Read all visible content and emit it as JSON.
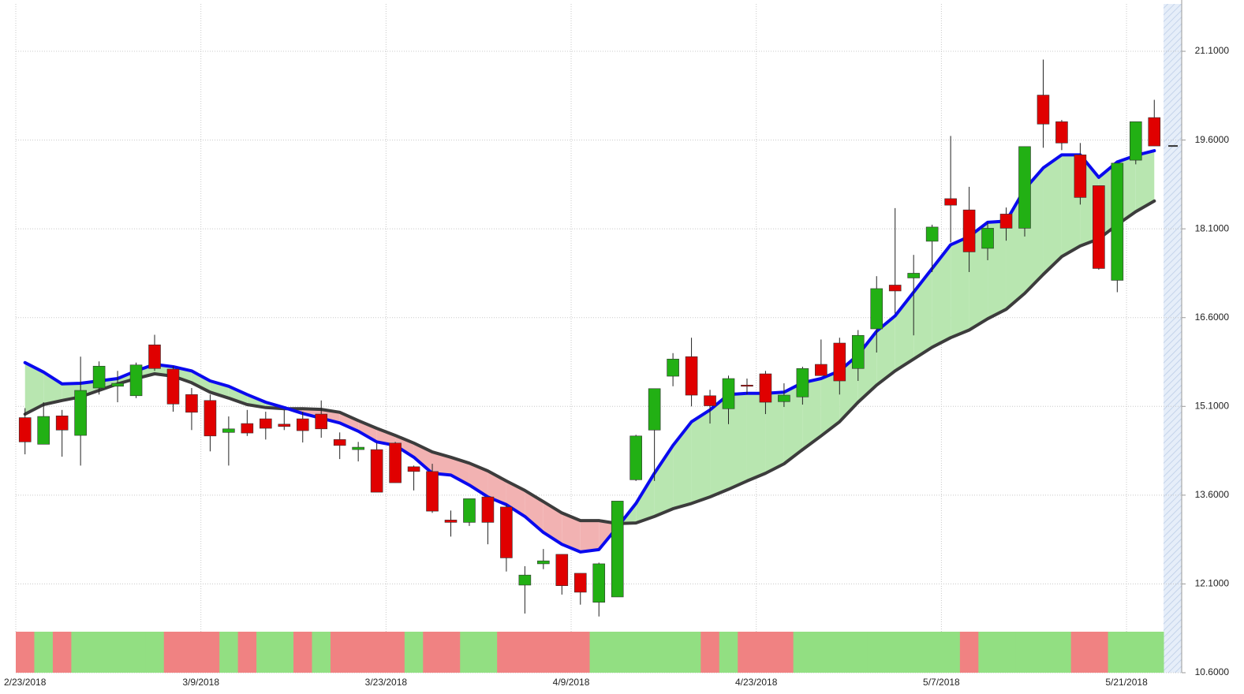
{
  "chart_data": {
    "type": "candlestick",
    "categories": [
      "2/23/2018",
      null,
      null,
      null,
      null,
      null,
      null,
      null,
      null,
      null,
      "3/9/2018",
      null,
      null,
      null,
      null,
      null,
      null,
      null,
      null,
      null,
      "3/23/2018",
      null,
      null,
      null,
      null,
      null,
      null,
      null,
      null,
      null,
      "4/9/2018",
      null,
      null,
      null,
      null,
      null,
      null,
      null,
      null,
      null,
      "4/23/2018",
      null,
      null,
      null,
      null,
      null,
      null,
      null,
      null,
      null,
      "5/7/2018",
      null,
      null,
      null,
      null,
      null,
      null,
      null,
      null,
      null,
      "5/21/2018",
      null
    ],
    "open": [
      14.91,
      14.46,
      14.94,
      14.61,
      15.41,
      15.44,
      15.28,
      16.14,
      15.73,
      15.3,
      15.2,
      14.66,
      14.81,
      14.89,
      14.8,
      14.89,
      14.97,
      14.54,
      14.37,
      14.37,
      14.48,
      14.08,
      14.0,
      13.18,
      13.14,
      13.57,
      13.4,
      12.08,
      12.44,
      12.6,
      12.28,
      11.79,
      11.88,
      13.86,
      14.7,
      15.61,
      15.94,
      15.28,
      15.06,
      15.46,
      15.65,
      15.18,
      15.26,
      15.81,
      16.17,
      15.74,
      16.41,
      17.15,
      17.27,
      17.89,
      18.61,
      18.42,
      17.77,
      18.35,
      18.11,
      20.36,
      19.91,
      19.35,
      18.83,
      17.23,
      19.26,
      19.98
    ],
    "high": [
      15.07,
      15.17,
      15.04,
      15.94,
      15.86,
      15.7,
      15.84,
      16.31,
      15.78,
      15.41,
      15.3,
      14.93,
      15.04,
      15.01,
      15.04,
      15.01,
      15.2,
      14.66,
      14.5,
      14.48,
      14.5,
      14.1,
      14.13,
      13.34,
      13.54,
      13.57,
      13.44,
      12.4,
      12.69,
      12.6,
      12.28,
      12.46,
      13.5,
      14.62,
      15.4,
      16.0,
      16.26,
      15.38,
      15.62,
      15.57,
      15.7,
      15.49,
      15.77,
      16.23,
      16.26,
      16.39,
      17.3,
      18.45,
      17.66,
      18.17,
      19.67,
      18.81,
      18.21,
      18.46,
      19.49,
      20.96,
      19.94,
      19.55,
      18.83,
      19.21,
      19.91,
      20.28
    ],
    "low": [
      14.29,
      14.46,
      14.25,
      14.1,
      15.3,
      15.17,
      15.24,
      15.7,
      15.01,
      14.7,
      14.34,
      14.1,
      14.6,
      14.54,
      14.7,
      14.49,
      14.57,
      14.21,
      14.17,
      13.65,
      13.81,
      13.68,
      13.3,
      12.9,
      13.08,
      12.77,
      12.31,
      11.6,
      12.35,
      11.92,
      11.75,
      11.55,
      11.88,
      13.84,
      13.84,
      15.44,
      15.1,
      14.81,
      14.8,
      15.3,
      14.97,
      15.09,
      15.13,
      15.62,
      15.3,
      15.53,
      16.01,
      16.67,
      16.3,
      17.37,
      17.87,
      17.37,
      17.57,
      17.9,
      17.97,
      19.47,
      19.43,
      18.51,
      17.41,
      17.03,
      19.19,
      19.5
    ],
    "close": [
      14.5,
      14.93,
      14.7,
      15.37,
      15.78,
      15.49,
      15.8,
      15.74,
      15.14,
      15.0,
      14.6,
      14.72,
      14.65,
      14.73,
      14.76,
      14.69,
      14.72,
      14.44,
      14.41,
      13.65,
      13.81,
      14.0,
      13.33,
      13.14,
      13.54,
      13.14,
      12.54,
      12.25,
      12.49,
      12.07,
      11.96,
      12.44,
      13.5,
      14.6,
      15.4,
      15.9,
      15.29,
      15.11,
      15.57,
      15.44,
      15.17,
      15.29,
      15.74,
      15.62,
      15.53,
      16.3,
      17.09,
      17.05,
      17.35,
      18.13,
      18.5,
      17.71,
      18.11,
      18.11,
      19.49,
      19.87,
      19.55,
      18.63,
      17.43,
      19.21,
      19.91,
      19.5
    ],
    "up_color": "#22b014",
    "down_color": "#e00000",
    "series": [
      {
        "color": "#0a0aee",
        "values": [
          15.84,
          15.68,
          15.48,
          15.49,
          15.53,
          15.57,
          15.7,
          15.81,
          15.77,
          15.7,
          15.53,
          15.44,
          15.3,
          15.17,
          15.08,
          14.98,
          14.9,
          14.82,
          14.68,
          14.5,
          14.44,
          14.24,
          13.97,
          13.94,
          13.77,
          13.57,
          13.44,
          13.24,
          12.97,
          12.77,
          12.64,
          12.68,
          13.06,
          13.46,
          13.97,
          14.44,
          14.84,
          15.04,
          15.3,
          15.32,
          15.32,
          15.34,
          15.5,
          15.57,
          15.7,
          15.97,
          16.37,
          16.63,
          17.03,
          17.43,
          17.83,
          17.97,
          18.21,
          18.23,
          18.77,
          19.13,
          19.35,
          19.35,
          18.97,
          19.23,
          19.34,
          19.42
        ]
      },
      {
        "color": "#3c3c3c",
        "values": [
          14.97,
          15.13,
          15.2,
          15.26,
          15.37,
          15.48,
          15.57,
          15.65,
          15.61,
          15.5,
          15.34,
          15.24,
          15.13,
          15.08,
          15.06,
          15.06,
          15.05,
          15.0,
          14.86,
          14.73,
          14.61,
          14.48,
          14.33,
          14.24,
          14.14,
          14.01,
          13.84,
          13.68,
          13.49,
          13.3,
          13.17,
          13.17,
          13.12,
          13.13,
          13.24,
          13.37,
          13.46,
          13.57,
          13.7,
          13.84,
          13.97,
          14.13,
          14.37,
          14.6,
          14.84,
          15.17,
          15.46,
          15.7,
          15.9,
          16.1,
          16.26,
          16.39,
          16.58,
          16.74,
          17.01,
          17.33,
          17.63,
          17.81,
          17.93,
          18.17,
          18.39,
          18.57
        ]
      }
    ],
    "fill_up": "#b8e6b0",
    "fill_down": "#f2b2b2",
    "band_colors": [
      "#f08282",
      "#92df82",
      "#f08282",
      "#92df82",
      "#92df82",
      "#92df82",
      "#92df82",
      "#92df82",
      "#f08282",
      "#f08282",
      "#f08282",
      "#92df82",
      "#f08282",
      "#92df82",
      "#92df82",
      "#f08282",
      "#92df82",
      "#f08282",
      "#f08282",
      "#f08282",
      "#f08282",
      "#92df82",
      "#f08282",
      "#f08282",
      "#92df82",
      "#92df82",
      "#f08282",
      "#f08282",
      "#f08282",
      "#f08282",
      "#f08282",
      "#92df82",
      "#92df82",
      "#92df82",
      "#92df82",
      "#92df82",
      "#92df82",
      "#f08282",
      "#92df82",
      "#f08282",
      "#f08282",
      "#f08282",
      "#92df82",
      "#92df82",
      "#92df82",
      "#92df82",
      "#92df82",
      "#92df82",
      "#92df82",
      "#92df82",
      "#92df82",
      "#f08282",
      "#92df82",
      "#92df82",
      "#92df82",
      "#92df82",
      "#92df82",
      "#f08282",
      "#f08282",
      "#92df82",
      "#92df82",
      "#92df82"
    ],
    "ylim": [
      10.6,
      21.9
    ],
    "yticks": [
      {
        "value": 10.6,
        "label": "10.6000"
      },
      {
        "value": 12.1,
        "label": "12.1000"
      },
      {
        "value": 13.6,
        "label": "13.6000"
      },
      {
        "value": 15.1,
        "label": "15.1000"
      },
      {
        "value": 16.6,
        "label": "16.6000"
      },
      {
        "value": 18.1,
        "label": "18.1000"
      },
      {
        "value": 19.6,
        "label": "19.6000"
      },
      {
        "value": 21.1,
        "label": "21.1000"
      }
    ],
    "grid": true
  }
}
